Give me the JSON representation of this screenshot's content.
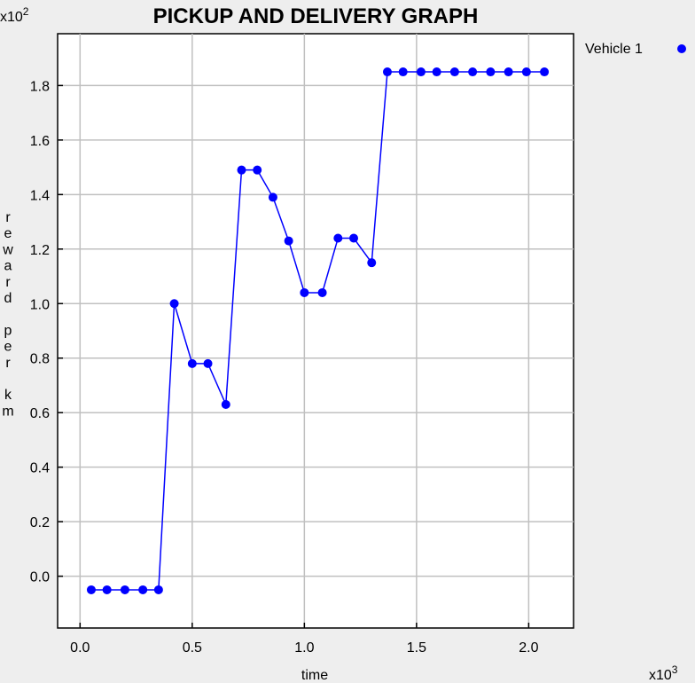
{
  "chart_data": {
    "type": "line",
    "title": "PICKUP AND DELIVERY GRAPH",
    "xlabel": "time",
    "ylabel": "reward per km",
    "x_multiplier": "x10^3",
    "y_multiplier": "x10^2",
    "xlim": [
      -0.1,
      2.2
    ],
    "ylim": [
      -0.19,
      1.99
    ],
    "x_ticks": [
      "0.0",
      "0.5",
      "1.0",
      "1.5",
      "2.0"
    ],
    "y_ticks": [
      "0.0",
      "0.2",
      "0.4",
      "0.6",
      "0.8",
      "1.0",
      "1.2",
      "1.4",
      "1.6",
      "1.8"
    ],
    "grid": true,
    "legend_position": "top-right",
    "series": [
      {
        "name": "Vehicle 1",
        "color": "#0000ff",
        "x": [
          0.05,
          0.12,
          0.2,
          0.28,
          0.35,
          0.42,
          0.5,
          0.57,
          0.65,
          0.72,
          0.79,
          0.86,
          0.93,
          1.0,
          1.08,
          1.15,
          1.22,
          1.3,
          1.37,
          1.44,
          1.52,
          1.59,
          1.67,
          1.75,
          1.83,
          1.91,
          1.99,
          2.07
        ],
        "y": [
          -0.05,
          -0.05,
          -0.05,
          -0.05,
          -0.05,
          1.0,
          0.78,
          0.78,
          0.63,
          1.49,
          1.49,
          1.39,
          1.23,
          1.04,
          1.04,
          1.24,
          1.24,
          1.15,
          1.85,
          1.85,
          1.85,
          1.85,
          1.85,
          1.85,
          1.85,
          1.85,
          1.85,
          1.85
        ]
      }
    ]
  }
}
